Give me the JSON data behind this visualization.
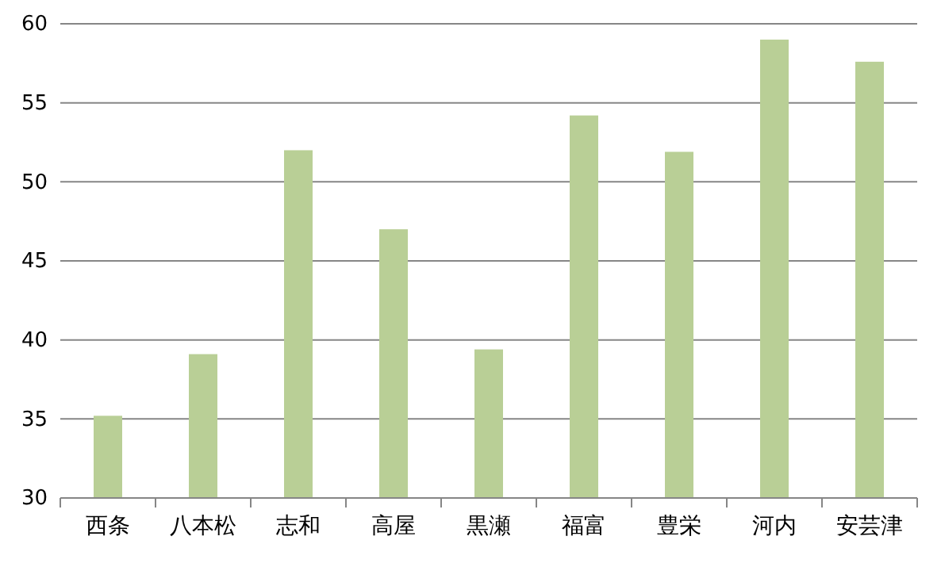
{
  "chart_data": {
    "type": "bar",
    "categories": [
      "西条",
      "八本松",
      "志和",
      "高屋",
      "黒瀬",
      "福富",
      "豊栄",
      "河内",
      "安芸津"
    ],
    "values": [
      35.2,
      39.1,
      52.0,
      47.0,
      39.4,
      54.2,
      51.9,
      59.0,
      57.6
    ],
    "color": "#b9cf96",
    "ylim": [
      30,
      60
    ],
    "yticks": [
      30,
      35,
      40,
      45,
      50,
      55,
      60
    ],
    "grid": "y"
  }
}
